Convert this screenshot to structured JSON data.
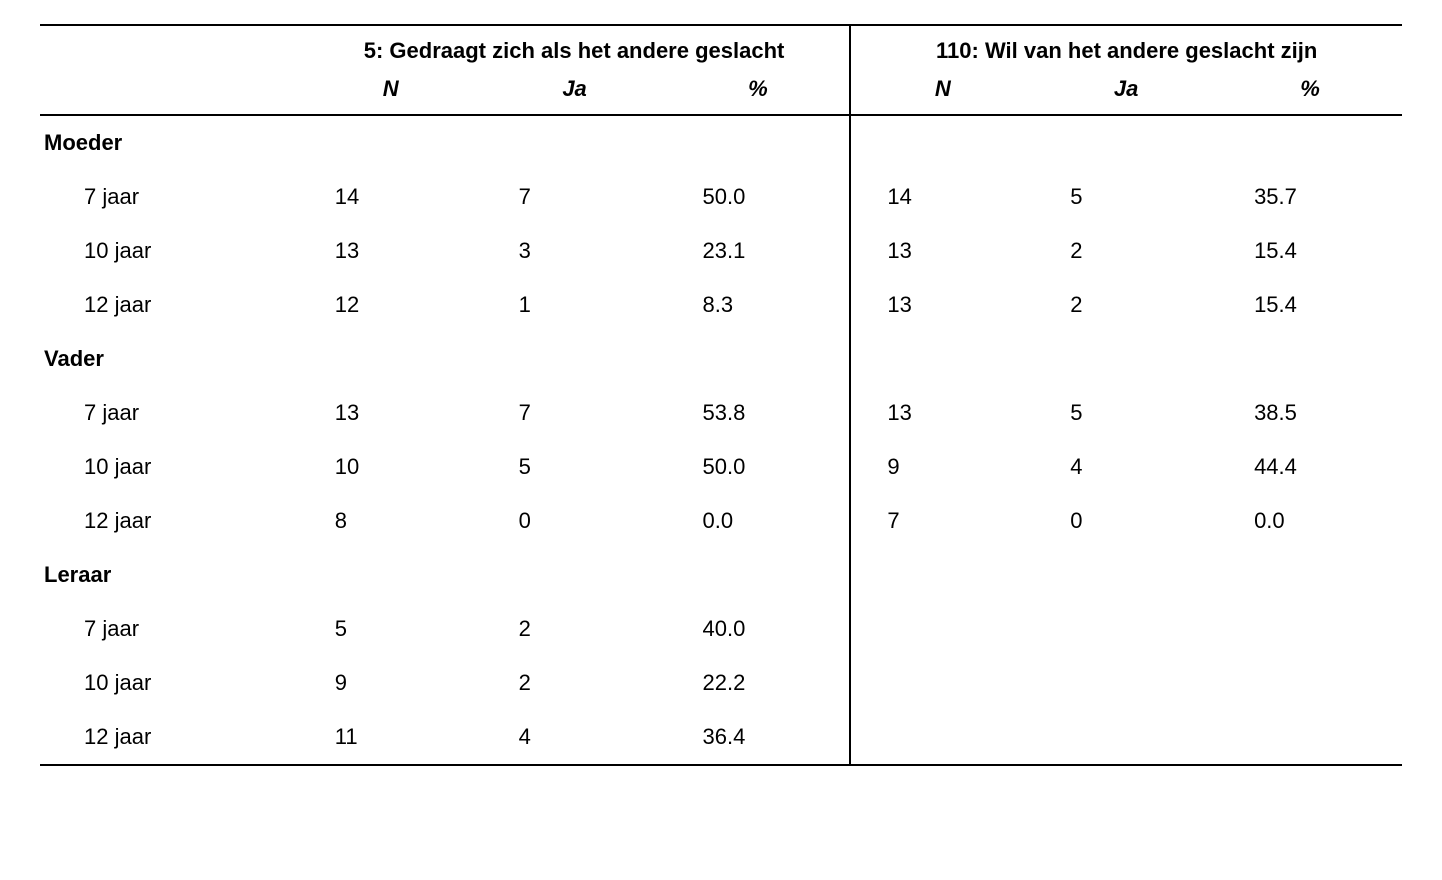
{
  "type": "table",
  "background_color": "#ffffff",
  "text_color": "#000000",
  "rule_color": "#000000",
  "font_size_pt": 16,
  "header": {
    "group_a_title": "5: Gedraagt zich als het andere geslacht",
    "group_b_title": "110: Wil van het andere geslacht zijn",
    "sub_n": "N",
    "sub_ja": "Ja",
    "sub_pct": "%"
  },
  "sections": [
    {
      "label": "Moeder",
      "rows": [
        {
          "age": "7 jaar",
          "a_n": "14",
          "a_ja": "7",
          "a_pct": "50.0",
          "b_n": "14",
          "b_ja": "5",
          "b_pct": "35.7"
        },
        {
          "age": "10 jaar",
          "a_n": "13",
          "a_ja": "3",
          "a_pct": "23.1",
          "b_n": "13",
          "b_ja": "2",
          "b_pct": "15.4"
        },
        {
          "age": "12 jaar",
          "a_n": "12",
          "a_ja": "1",
          "a_pct": "8.3",
          "b_n": "13",
          "b_ja": "2",
          "b_pct": "15.4"
        }
      ]
    },
    {
      "label": "Vader",
      "rows": [
        {
          "age": "7 jaar",
          "a_n": "13",
          "a_ja": "7",
          "a_pct": "53.8",
          "b_n": "13",
          "b_ja": "5",
          "b_pct": "38.5"
        },
        {
          "age": "10 jaar",
          "a_n": "10",
          "a_ja": "5",
          "a_pct": "50.0",
          "b_n": "9",
          "b_ja": "4",
          "b_pct": "44.4"
        },
        {
          "age": "12 jaar",
          "a_n": "8",
          "a_ja": "0",
          "a_pct": "0.0",
          "b_n": "7",
          "b_ja": "0",
          "b_pct": "0.0"
        }
      ]
    },
    {
      "label": "Leraar",
      "rows": [
        {
          "age": "7 jaar",
          "a_n": "5",
          "a_ja": "2",
          "a_pct": "40.0",
          "b_n": "",
          "b_ja": "",
          "b_pct": ""
        },
        {
          "age": "10 jaar",
          "a_n": "9",
          "a_ja": "2",
          "a_pct": "22.2",
          "b_n": "",
          "b_ja": "",
          "b_pct": ""
        },
        {
          "age": "12 jaar",
          "a_n": "11",
          "a_ja": "4",
          "a_pct": "36.4",
          "b_n": "",
          "b_ja": "",
          "b_pct": ""
        }
      ]
    }
  ]
}
